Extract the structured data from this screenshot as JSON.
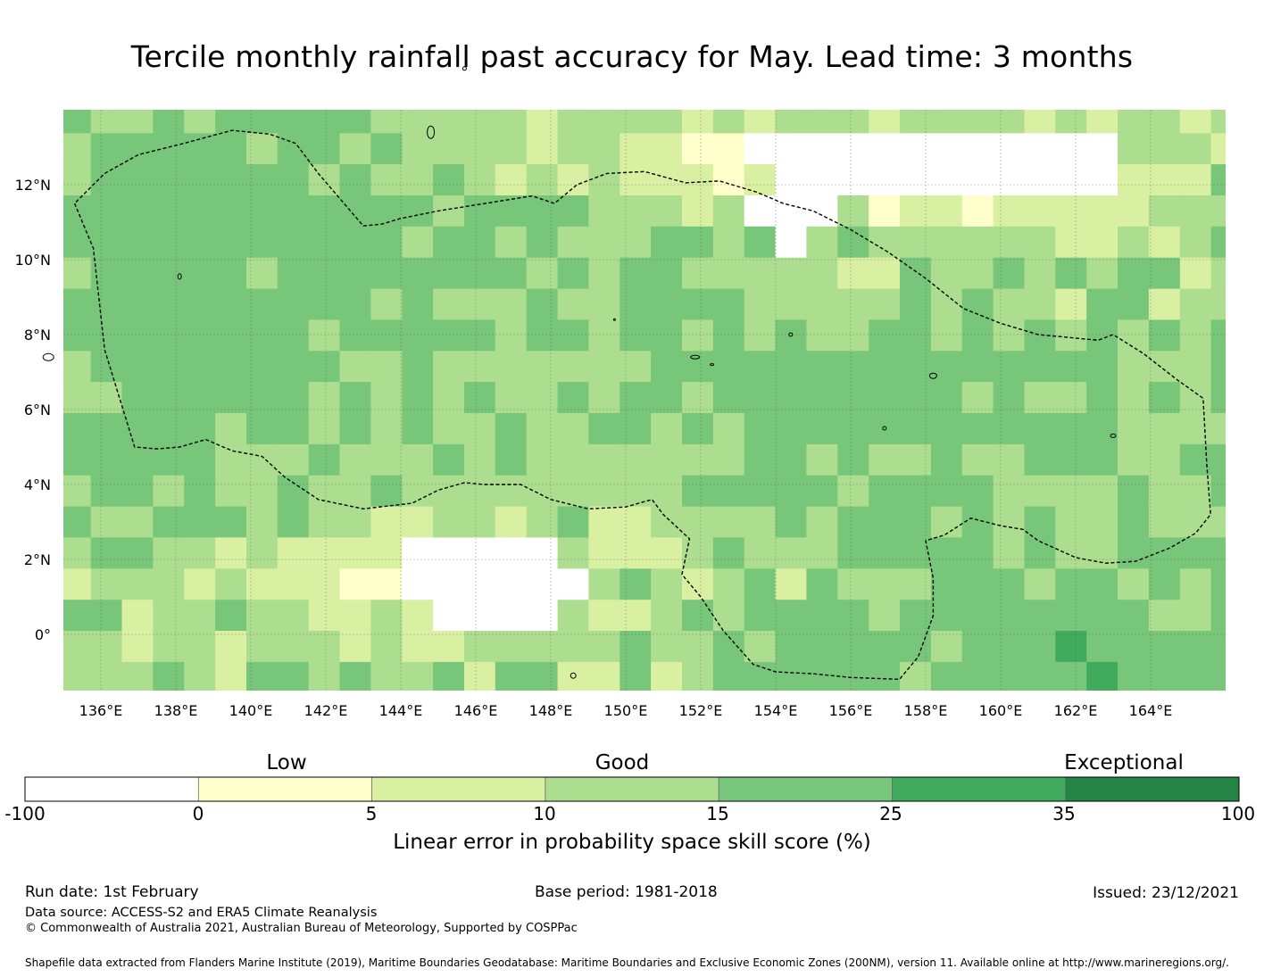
{
  "title": "Tercile monthly rainfall past accuracy for May. Lead time: 3 months",
  "map": {
    "lon_labels": [
      "136°E",
      "138°E",
      "140°E",
      "142°E",
      "144°E",
      "146°E",
      "148°E",
      "150°E",
      "152°E",
      "154°E",
      "156°E",
      "158°E",
      "160°E",
      "162°E",
      "164°E"
    ],
    "lon_values": [
      136,
      138,
      140,
      142,
      144,
      146,
      148,
      150,
      152,
      154,
      156,
      158,
      160,
      162,
      164
    ],
    "lat_labels": [
      "12°N",
      "10°N",
      "8°N",
      "6°N",
      "4°N",
      "2°N",
      "0°"
    ],
    "lat_values": [
      12,
      10,
      8,
      6,
      4,
      2,
      0
    ],
    "lon_range": [
      135,
      166
    ],
    "lat_range": [
      -1.5,
      14
    ],
    "grid_resolution_deg": 0.83,
    "eez_boundary_lonlat": [
      [
        135.3,
        11.5
      ],
      [
        135.8,
        10.3
      ],
      [
        136.1,
        7.6
      ],
      [
        136.9,
        5.0
      ],
      [
        137.5,
        4.95
      ],
      [
        138.1,
        5.0
      ],
      [
        138.8,
        5.2
      ],
      [
        139.5,
        4.9
      ],
      [
        140.3,
        4.75
      ],
      [
        140.9,
        4.2
      ],
      [
        141.8,
        3.6
      ],
      [
        143.0,
        3.35
      ],
      [
        144.3,
        3.5
      ],
      [
        145.0,
        3.85
      ],
      [
        145.7,
        4.05
      ],
      [
        146.2,
        4.0
      ],
      [
        147.2,
        4.0
      ],
      [
        148.0,
        3.6
      ],
      [
        149.0,
        3.35
      ],
      [
        150.0,
        3.4
      ],
      [
        150.7,
        3.6
      ],
      [
        151.0,
        3.2
      ],
      [
        151.7,
        2.55
      ],
      [
        151.5,
        1.6
      ],
      [
        152.0,
        1.0
      ],
      [
        152.6,
        0.1
      ],
      [
        153.4,
        -0.8
      ],
      [
        154.0,
        -1.0
      ],
      [
        155.0,
        -1.05
      ],
      [
        156.0,
        -1.15
      ],
      [
        157.3,
        -1.2
      ],
      [
        157.8,
        -0.6
      ],
      [
        158.2,
        0.5
      ],
      [
        158.2,
        1.5
      ],
      [
        158.0,
        2.5
      ],
      [
        158.5,
        2.65
      ],
      [
        159.2,
        3.1
      ],
      [
        160.0,
        2.9
      ],
      [
        160.6,
        2.8
      ],
      [
        161.0,
        2.5
      ],
      [
        162.0,
        2.05
      ],
      [
        162.8,
        1.9
      ],
      [
        163.6,
        1.95
      ],
      [
        164.5,
        2.3
      ],
      [
        165.2,
        2.7
      ],
      [
        165.6,
        3.2
      ],
      [
        165.5,
        4.5
      ],
      [
        165.4,
        6.3
      ],
      [
        164.7,
        6.8
      ],
      [
        163.8,
        7.5
      ],
      [
        163.0,
        8.0
      ],
      [
        162.6,
        7.85
      ],
      [
        161.0,
        8.0
      ],
      [
        160.0,
        8.3
      ],
      [
        159.0,
        8.7
      ],
      [
        158.0,
        9.5
      ],
      [
        157.0,
        10.2
      ],
      [
        156.5,
        10.5
      ],
      [
        156.0,
        10.8
      ],
      [
        155.0,
        11.3
      ],
      [
        154.2,
        11.5
      ],
      [
        153.5,
        11.8
      ],
      [
        152.5,
        12.1
      ],
      [
        151.6,
        12.05
      ],
      [
        150.5,
        12.35
      ],
      [
        149.5,
        12.3
      ],
      [
        148.7,
        12.0
      ],
      [
        148.1,
        11.5
      ],
      [
        147.5,
        11.7
      ],
      [
        145.0,
        11.3
      ],
      [
        144.0,
        11.1
      ],
      [
        143.5,
        10.95
      ],
      [
        143.0,
        10.9
      ],
      [
        141.8,
        12.3
      ],
      [
        141.2,
        13.1
      ],
      [
        140.5,
        13.35
      ],
      [
        139.5,
        13.45
      ],
      [
        138.2,
        13.1
      ],
      [
        137.0,
        12.8
      ],
      [
        136.1,
        12.3
      ],
      [
        135.3,
        11.5
      ]
    ],
    "skill_score_raster_note": "values in % on a ~0.83 degree grid"
  },
  "colorbar": {
    "categories": [
      "Low",
      "Good",
      "Exceptional"
    ],
    "ticks": [
      "-100",
      "0",
      "5",
      "10",
      "15",
      "25",
      "35",
      "100"
    ],
    "bin_edges": [
      -100,
      0,
      5,
      10,
      15,
      25,
      35,
      100
    ],
    "colors": [
      "#ffffff",
      "#ffffcc",
      "#d9f0a3",
      "#addd8e",
      "#78c679",
      "#41ab5d",
      "#238443"
    ],
    "label": "Linear error in probability space skill score (%)"
  },
  "footer": {
    "run_date": "Run date: 1st February",
    "base_period": "Base period: 1981-2018",
    "issued": "Issued: 23/12/2021",
    "data_source": "Data source: ACCESS-S2 and ERA5 Climate Reanalysis",
    "copyright": "© Commonwealth of Australia 2021, Australian Bureau of Meteorology, Supported by COSPPac",
    "shapefile_note": "Shapefile data extracted from Flanders Marine Institute (2019), Maritime Boundaries Geodatabase: Maritime Boundaries and Exclusive Economic Zones (200NM), version 11. Available online at http://www.marineregions.org/."
  }
}
